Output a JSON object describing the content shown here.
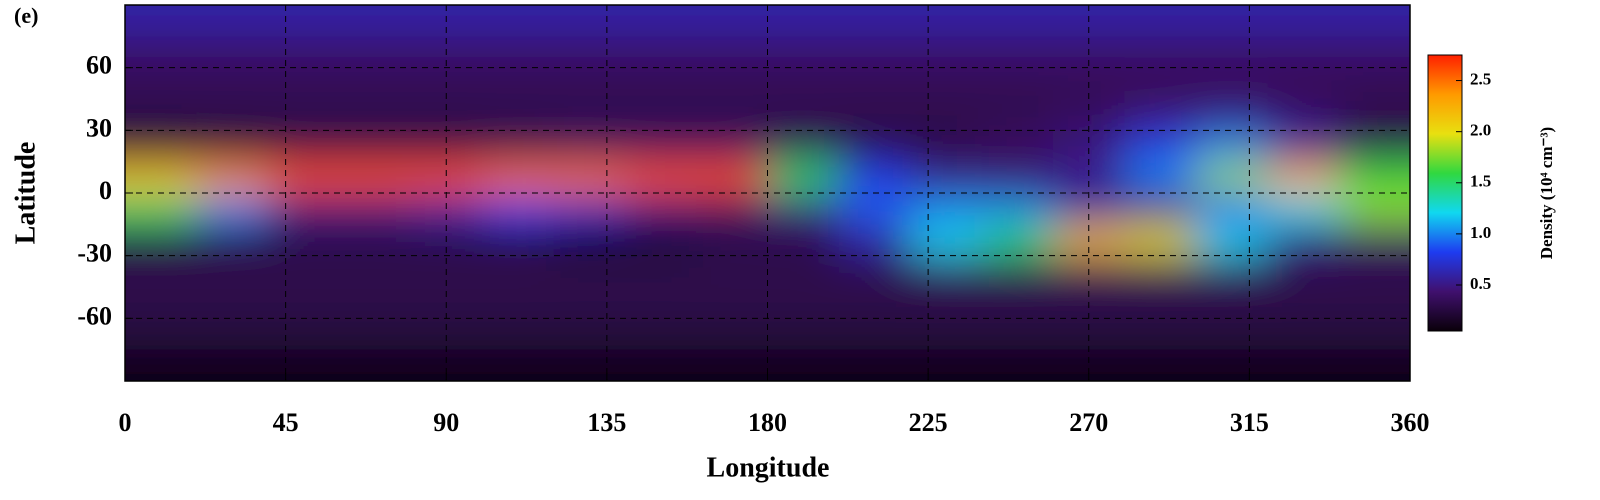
{
  "chart_data": {
    "type": "heatmap",
    "panel_label": "(e)",
    "xlabel": "Longitude",
    "ylabel": "Latitude",
    "colorbar_label": "Density (10⁴ cm⁻³)",
    "xlim": [
      0,
      360
    ],
    "ylim": [
      -90,
      90
    ],
    "xticks": [
      0,
      45,
      90,
      135,
      180,
      225,
      270,
      315,
      360
    ],
    "yticks": [
      -60,
      -30,
      0,
      30,
      60
    ],
    "grid": true,
    "zlim": [
      0.05,
      2.75
    ],
    "zticks": [
      0.5,
      {
        "value": 1,
        "label": "1.0"
      },
      1.5,
      {
        "value": 2,
        "label": "2.0"
      },
      2.5
    ],
    "colormap": [
      "#0a000a",
      "#40106e",
      "#1e3cf0",
      "#10d8f0",
      "#30d840",
      "#e8e010",
      "#ff9a00",
      "#ff2000"
    ],
    "x": [
      10,
      30,
      50,
      70,
      90,
      110,
      130,
      150,
      170,
      190,
      210,
      230,
      250,
      270,
      290,
      310,
      330,
      350
    ],
    "y": [
      82.5,
      67.5,
      52.5,
      37.5,
      22.5,
      7.5,
      -7.5,
      -22.5,
      -37.5,
      -52.5,
      -67.5,
      -82.5
    ],
    "z": [
      [
        0.6,
        0.6,
        0.6,
        0.6,
        0.6,
        0.6,
        0.6,
        0.6,
        0.6,
        0.6,
        0.6,
        0.6,
        0.6,
        0.6,
        0.6,
        0.6,
        0.6,
        0.6
      ],
      [
        0.4,
        0.4,
        0.4,
        0.4,
        0.4,
        0.4,
        0.4,
        0.4,
        0.4,
        0.4,
        0.4,
        0.4,
        0.4,
        0.4,
        0.4,
        0.4,
        0.4,
        0.4
      ],
      [
        0.35,
        0.35,
        0.35,
        0.35,
        0.35,
        0.35,
        0.35,
        0.35,
        0.35,
        0.35,
        0.35,
        0.35,
        0.35,
        0.35,
        0.35,
        0.35,
        0.35,
        0.35
      ],
      [
        0.3,
        0.3,
        0.3,
        0.3,
        0.3,
        0.3,
        0.3,
        0.3,
        0.3,
        0.3,
        0.3,
        0.3,
        0.3,
        0.35,
        0.45,
        0.5,
        0.4,
        0.3
      ],
      [
        0.2,
        0.25,
        0.3,
        0.3,
        0.3,
        0.35,
        0.4,
        0.4,
        0.4,
        0.35,
        0.3,
        0.3,
        0.4,
        0.5,
        0.8,
        1.0,
        0.6,
        0.3
      ],
      [
        2.2,
        2.4,
        2.6,
        2.6,
        2.6,
        2.5,
        2.5,
        2.6,
        2.6,
        1.5,
        0.8,
        0.5,
        0.4,
        0.5,
        1.0,
        1.8,
        2.3,
        1.6
      ],
      [
        1.5,
        1.0,
        0.5,
        0.5,
        0.6,
        0.8,
        0.7,
        0.5,
        0.4,
        0.5,
        0.9,
        1.0,
        1.0,
        0.6,
        0.5,
        0.9,
        1.2,
        1.8
      ],
      [
        0.3,
        0.3,
        0.3,
        0.3,
        0.3,
        0.3,
        0.2,
        0.2,
        0.3,
        0.3,
        0.6,
        1.2,
        1.5,
        2.2,
        2.0,
        1.2,
        0.5,
        0.4
      ],
      [
        0.3,
        0.3,
        0.3,
        0.3,
        0.3,
        0.3,
        0.3,
        0.3,
        0.3,
        0.3,
        0.3,
        0.35,
        0.35,
        0.35,
        0.35,
        0.35,
        0.3,
        0.3
      ],
      [
        0.3,
        0.3,
        0.3,
        0.3,
        0.3,
        0.3,
        0.3,
        0.3,
        0.3,
        0.3,
        0.3,
        0.3,
        0.3,
        0.3,
        0.3,
        0.3,
        0.3,
        0.3
      ],
      [
        0.25,
        0.25,
        0.25,
        0.25,
        0.25,
        0.25,
        0.25,
        0.25,
        0.25,
        0.25,
        0.25,
        0.25,
        0.25,
        0.25,
        0.25,
        0.25,
        0.25,
        0.25
      ],
      [
        0.1,
        0.1,
        0.1,
        0.1,
        0.1,
        0.1,
        0.1,
        0.1,
        0.1,
        0.1,
        0.1,
        0.1,
        0.1,
        0.1,
        0.1,
        0.1,
        0.1,
        0.1
      ]
    ]
  }
}
